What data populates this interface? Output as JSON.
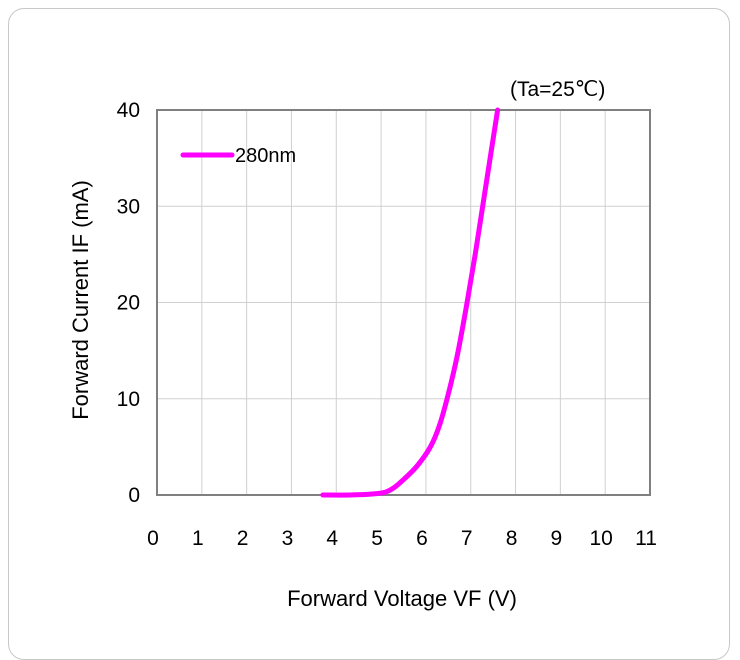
{
  "chart_data": {
    "type": "line",
    "title": "",
    "annotation": "(Ta=25℃)",
    "xlabel": "Forward Voltage VF (V)",
    "ylabel": "Forward Current IF (mA)",
    "xlim": [
      0,
      11
    ],
    "ylim": [
      0,
      40
    ],
    "xticks": [
      "0",
      "1",
      "2",
      "3",
      "4",
      "5",
      "6",
      "7",
      "8",
      "9",
      "10",
      "11"
    ],
    "yticks": [
      "0",
      "10",
      "20",
      "30",
      "40"
    ],
    "grid": true,
    "legend_position": "top-left",
    "series": [
      {
        "name": "280nm",
        "color": "#ff00ff",
        "x": [
          3.7,
          4.3,
          4.8,
          5.1,
          5.3,
          5.5,
          5.8,
          6.1,
          6.3,
          6.5,
          6.7,
          6.9,
          7.1,
          7.3,
          7.5,
          7.6
        ],
        "y": [
          0,
          0,
          0.1,
          0.3,
          0.8,
          1.6,
          3.0,
          5.0,
          7.2,
          10.5,
          14.5,
          19.5,
          25.0,
          31.0,
          37.0,
          40.0
        ]
      }
    ]
  }
}
